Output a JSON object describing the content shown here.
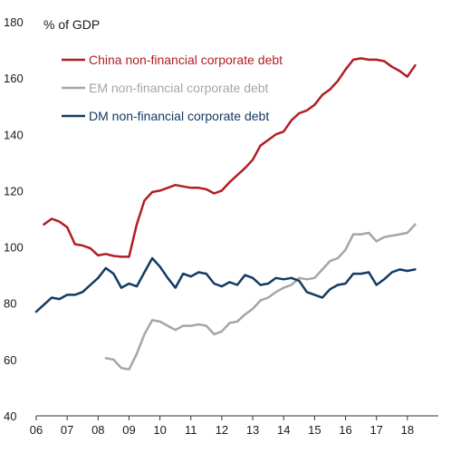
{
  "chart_data": {
    "type": "line",
    "unit_label": "% of GDP",
    "ylim": [
      40,
      180
    ],
    "yticks": [
      40,
      60,
      80,
      100,
      120,
      140,
      160,
      180
    ],
    "xlim": [
      2006,
      2019
    ],
    "xticks": [
      2006,
      2007,
      2008,
      2009,
      2010,
      2011,
      2012,
      2013,
      2014,
      2015,
      2016,
      2017,
      2018
    ],
    "xtick_labels": [
      "06",
      "07",
      "08",
      "09",
      "10",
      "11",
      "12",
      "13",
      "14",
      "15",
      "16",
      "17",
      "18"
    ],
    "grid": false,
    "legend_position": "top-left",
    "series": [
      {
        "name": "China non-financial corporate debt",
        "color": "#b01e24",
        "x": [
          2006.25,
          2006.5,
          2006.75,
          2007.0,
          2007.25,
          2007.5,
          2007.75,
          2008.0,
          2008.25,
          2008.5,
          2008.75,
          2009.0,
          2009.25,
          2009.5,
          2009.75,
          2010.0,
          2010.25,
          2010.5,
          2010.75,
          2011.0,
          2011.25,
          2011.5,
          2011.75,
          2012.0,
          2012.25,
          2012.5,
          2012.75,
          2013.0,
          2013.25,
          2013.5,
          2013.75,
          2014.0,
          2014.25,
          2014.5,
          2014.75,
          2015.0,
          2015.25,
          2015.5,
          2015.75,
          2016.0,
          2016.25,
          2016.5,
          2016.75,
          2017.0,
          2017.25,
          2017.5,
          2017.75,
          2018.0,
          2018.25
        ],
        "values": [
          108,
          110,
          109,
          107,
          101,
          100.5,
          99.5,
          97,
          97.5,
          96.8,
          96.5,
          96.5,
          108,
          116.5,
          119.5,
          120,
          121,
          122,
          121.5,
          121,
          121,
          120.5,
          119,
          120,
          123,
          125.5,
          128,
          131,
          136,
          138,
          140,
          141,
          145,
          147.5,
          148.5,
          150.5,
          154,
          156,
          159,
          163,
          166.5,
          167,
          166.5,
          166.5,
          166,
          164,
          162.5,
          160.5,
          164.5
        ]
      },
      {
        "name": "EM non-financial corporate debt",
        "color": "#a6a6a6",
        "x": [
          2008.25,
          2008.5,
          2008.75,
          2009.0,
          2009.25,
          2009.5,
          2009.75,
          2010.0,
          2010.25,
          2010.5,
          2010.75,
          2011.0,
          2011.25,
          2011.5,
          2011.75,
          2012.0,
          2012.25,
          2012.5,
          2012.75,
          2013.0,
          2013.25,
          2013.5,
          2013.75,
          2014.0,
          2014.25,
          2014.5,
          2014.75,
          2015.0,
          2015.25,
          2015.5,
          2015.75,
          2016.0,
          2016.25,
          2016.5,
          2016.75,
          2017.0,
          2017.25,
          2017.5,
          2017.75,
          2018.0,
          2018.25
        ],
        "values": [
          60.5,
          60,
          57,
          56.5,
          62,
          69,
          74,
          73.5,
          72,
          70.5,
          72,
          72,
          72.5,
          72,
          69,
          70,
          73,
          73.5,
          76,
          78,
          81,
          82,
          84,
          85.5,
          86.5,
          89,
          88.5,
          89,
          92,
          95,
          96,
          99,
          104.5,
          104.5,
          105,
          102,
          103.5,
          104,
          104.5,
          105,
          108
        ]
      },
      {
        "name": "DM non-financial corporate debt",
        "color": "#123a63",
        "x": [
          2006.0,
          2006.25,
          2006.5,
          2006.75,
          2007.0,
          2007.25,
          2007.5,
          2007.75,
          2008.0,
          2008.25,
          2008.5,
          2008.75,
          2009.0,
          2009.25,
          2009.5,
          2009.75,
          2010.0,
          2010.25,
          2010.5,
          2010.75,
          2011.0,
          2011.25,
          2011.5,
          2011.75,
          2012.0,
          2012.25,
          2012.5,
          2012.75,
          2013.0,
          2013.25,
          2013.5,
          2013.75,
          2014.0,
          2014.25,
          2014.5,
          2014.75,
          2015.0,
          2015.25,
          2015.5,
          2015.75,
          2016.0,
          2016.25,
          2016.5,
          2016.75,
          2017.0,
          2017.25,
          2017.5,
          2017.75,
          2018.0,
          2018.25
        ],
        "values": [
          77,
          79.5,
          82,
          81.5,
          83,
          83,
          84,
          86.5,
          89,
          92.5,
          90.5,
          85.5,
          87,
          86,
          91,
          96,
          93,
          89,
          85.5,
          90.5,
          89.5,
          91,
          90.5,
          87,
          86,
          87.5,
          86.5,
          90,
          89,
          86.5,
          87,
          89,
          88.5,
          89,
          88,
          84,
          83,
          82,
          85,
          86.5,
          87,
          90.5,
          90.5,
          91,
          86.5,
          88.5,
          91,
          92,
          91.5,
          92
        ]
      }
    ]
  }
}
